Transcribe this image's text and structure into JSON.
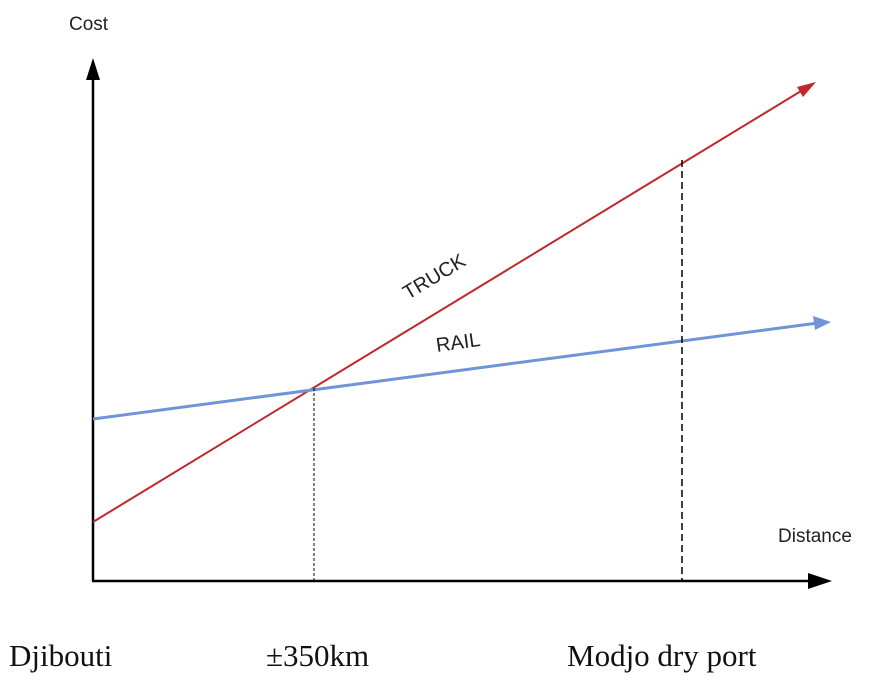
{
  "axes": {
    "y_label": "Cost",
    "x_label": "Distance"
  },
  "lines": {
    "truck": {
      "label": "TRUCK",
      "color": "#c0282d"
    },
    "rail": {
      "label": "RAIL",
      "color": "#6f95d6"
    }
  },
  "locations": {
    "origin": "Djibouti",
    "breakeven": "±350km",
    "destination": "Modjo dry port"
  }
}
